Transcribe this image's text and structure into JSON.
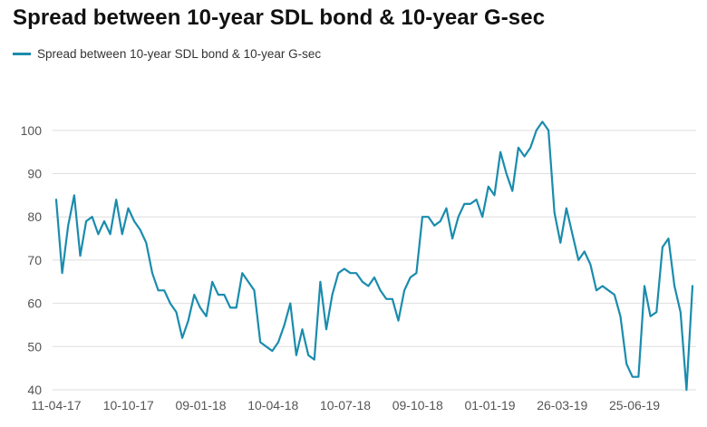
{
  "chart_data": {
    "type": "line",
    "title": "Spread between 10-year SDL bond & 10-year G-sec",
    "legend": {
      "placement": "top-left",
      "entries": [
        "Spread between 10-year SDL bond & 10-year G-sec"
      ]
    },
    "xlabel": "",
    "ylabel": "",
    "ylim": [
      40,
      105
    ],
    "yticks": [
      40,
      50,
      60,
      70,
      80,
      90,
      100
    ],
    "x_tick_labels": [
      "11-04-17",
      "10-10-17",
      "09-01-18",
      "10-04-18",
      "10-07-18",
      "09-10-18",
      "01-01-19",
      "26-03-19",
      "25-06-19"
    ],
    "grid": {
      "horizontal": true,
      "vertical": false
    },
    "series": [
      {
        "name": "Spread between 10-year SDL bond & 10-year G-sec",
        "color": "#1a8cad",
        "values": [
          84,
          67,
          78,
          85,
          71,
          79,
          80,
          76,
          79,
          76,
          84,
          76,
          82,
          79,
          77,
          74,
          67,
          63,
          63,
          60,
          58,
          52,
          56,
          62,
          59,
          57,
          65,
          62,
          62,
          59,
          59,
          67,
          65,
          63,
          51,
          50,
          49,
          51,
          55,
          60,
          48,
          54,
          48,
          47,
          65,
          54,
          62,
          67,
          68,
          67,
          67,
          65,
          64,
          66,
          63,
          61,
          61,
          56,
          63,
          66,
          67,
          80,
          80,
          78,
          79,
          82,
          75,
          80,
          83,
          83,
          84,
          80,
          87,
          85,
          95,
          90,
          86,
          96,
          94,
          96,
          100,
          102,
          100,
          81,
          74,
          82,
          76,
          70,
          72,
          69,
          63,
          64,
          63,
          62,
          57,
          46,
          43,
          43,
          64,
          57,
          58,
          73,
          75,
          64,
          58,
          40,
          64
        ]
      }
    ]
  }
}
